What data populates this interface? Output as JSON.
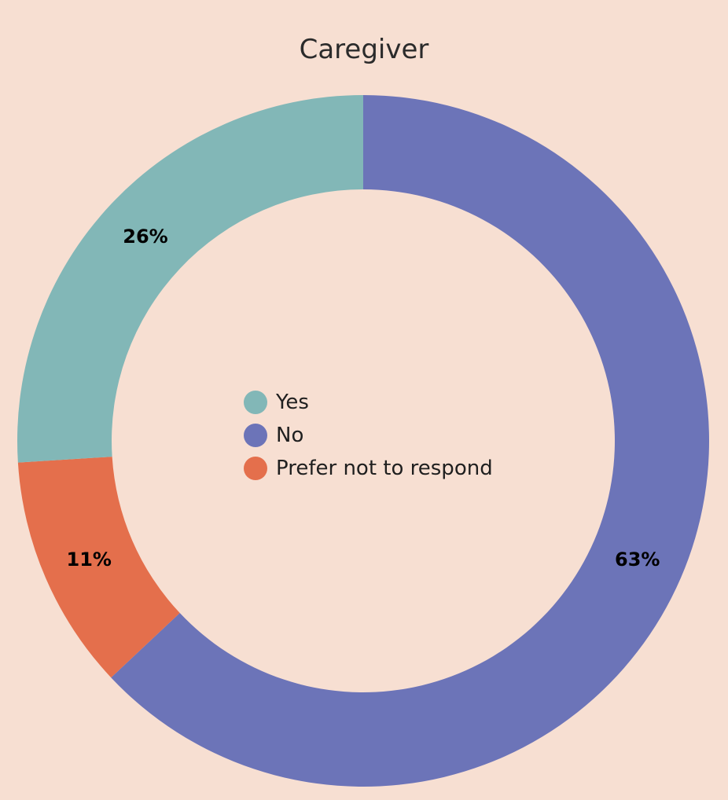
{
  "chart_data": {
    "type": "pie",
    "title": "Caregiver",
    "donut": true,
    "legend_position": "center",
    "slices": [
      {
        "name": "Yes",
        "value": 26,
        "label": "26%",
        "color": "#82b7b7"
      },
      {
        "name": "No",
        "value": 63,
        "label": "63%",
        "color": "#6c74b8"
      },
      {
        "name": "Prefer not to respond",
        "value": 11,
        "label": "11%",
        "color": "#e46f4c"
      }
    ]
  },
  "colors": {
    "background": "#f7dfd2"
  }
}
